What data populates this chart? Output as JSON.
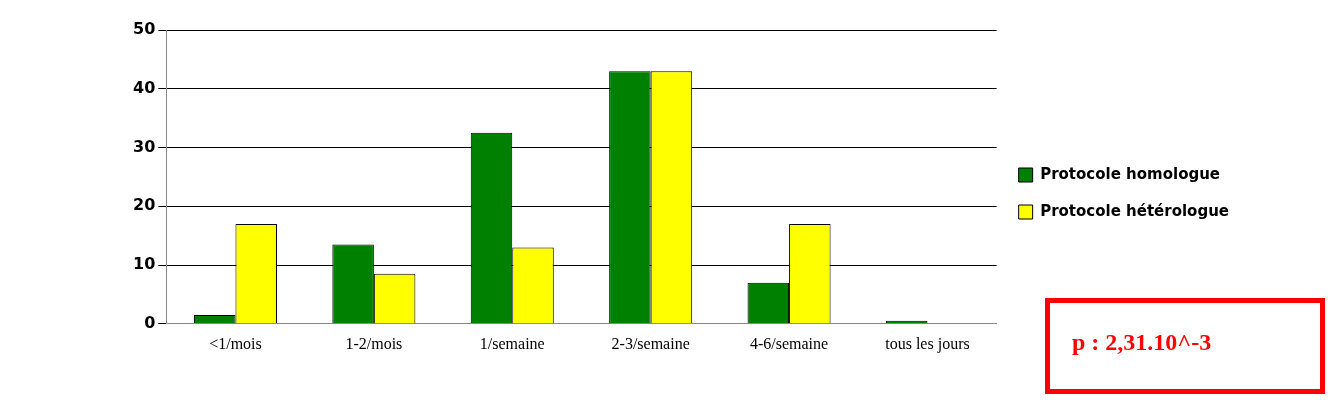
{
  "chart_data": {
    "type": "bar",
    "categories": [
      "<1/mois",
      "1-2/mois",
      "1/semaine",
      "2-3/semaine",
      "4-6/semaine",
      "tous les jours"
    ],
    "series": [
      {
        "name": "Protocole homologue",
        "color": "#008000",
        "values": [
          1.5,
          13.5,
          32.5,
          43,
          7,
          0.5
        ]
      },
      {
        "name": "Protocole hétérologue",
        "color": "#ffff00",
        "values": [
          17,
          8.5,
          13,
          43,
          17,
          0
        ]
      }
    ],
    "ylim": [
      0,
      50
    ],
    "yticks": [
      0,
      10,
      20,
      30,
      40,
      50
    ],
    "grid": "y",
    "legend": "right",
    "annotations": [
      "p : 2,31.10^-3"
    ]
  }
}
